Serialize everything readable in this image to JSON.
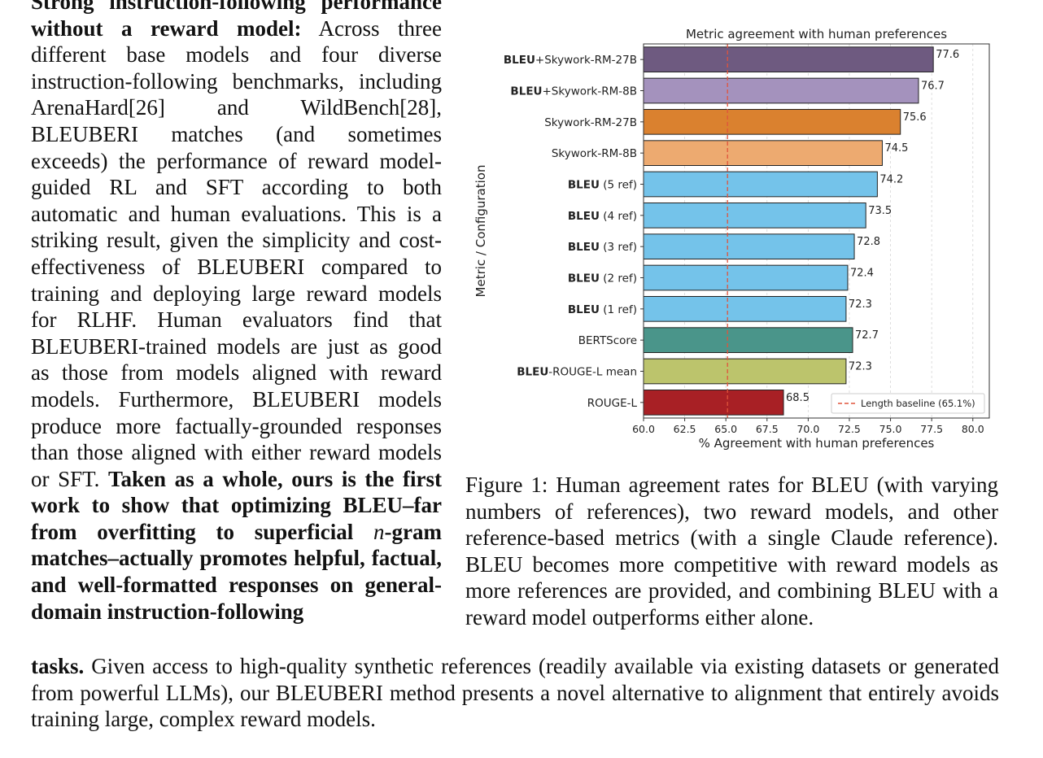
{
  "left_column": {
    "lead_bold": "Strong instruction-following performance without a reward model:",
    "body": "Across three different base models and four diverse instruction-following benchmarks, including ArenaHard[26] and WildBench[28], BLEUBERI matches (and sometimes exceeds) the performance of reward model-guided RL and SFT according to both automatic and human evaluations. This is a striking result, given the simplicity and cost-effectiveness of BLEUBERI compared to training and deploying large reward models for RLHF. Human evaluators find that BLEUBERI-trained models are just as good as those from models aligned with reward models. Furthermore, BLEUBERI models produce more factually-grounded responses than those aligned with either reward models or SFT.",
    "bold_claim_part1": "Taken as a whole, ours is the first work to show that optimizing BLEU–far from overfitting to superficial",
    "bold_claim_math": "n",
    "bold_claim_part2": "-gram matches–actually promotes helpful, factual, and well-formatted responses on general-domain instruction-following"
  },
  "bottom_paragraph": {
    "bold_start": "tasks.",
    "text": "Given access to high-quality synthetic references (readily available via existing datasets or generated from powerful LLMs), our BLEUBERI method presents a novel alternative to alignment that entirely avoids training large, complex reward models."
  },
  "caption": "Figure 1: Human agreement rates for BLEU (with varying numbers of references), two reward models, and other reference-based metrics (with a single Claude reference). BLEU becomes more competitive with reward models as more references are provided, and combining BLEU with a reward model outperforms either alone.",
  "chart_data": {
    "type": "bar",
    "orientation": "horizontal",
    "title": "Metric agreement with human preferences",
    "xlabel": "% Agreement with human preferences",
    "ylabel": "Metric / Configuration",
    "xlim": [
      60.0,
      81.0
    ],
    "xticks": [
      "60.0",
      "62.5",
      "65.0",
      "67.5",
      "70.0",
      "72.5",
      "75.0",
      "77.5",
      "80.0"
    ],
    "grid": "vertical dashed",
    "bars": [
      {
        "bold": "BLEU",
        "rest": "+Skywork-RM-27B",
        "value": 77.6,
        "label": "77.6",
        "color": "#6e5a80"
      },
      {
        "bold": "BLEU",
        "rest": "+Skywork-RM-8B",
        "value": 76.7,
        "label": "76.7",
        "color": "#a492bd"
      },
      {
        "bold": "",
        "rest": "Skywork-RM-27B",
        "value": 75.6,
        "label": "75.6",
        "color": "#da812f"
      },
      {
        "bold": "",
        "rest": "Skywork-RM-8B",
        "value": 74.5,
        "label": "74.5",
        "color": "#edaa70"
      },
      {
        "bold": "BLEU",
        "rest": " (5 ref)",
        "value": 74.2,
        "label": "74.2",
        "color": "#74c3ea"
      },
      {
        "bold": "BLEU",
        "rest": " (4 ref)",
        "value": 73.5,
        "label": "73.5",
        "color": "#74c3ea"
      },
      {
        "bold": "BLEU",
        "rest": " (3 ref)",
        "value": 72.8,
        "label": "72.8",
        "color": "#74c3ea"
      },
      {
        "bold": "BLEU",
        "rest": " (2 ref)",
        "value": 72.4,
        "label": "72.4",
        "color": "#74c3ea"
      },
      {
        "bold": "BLEU",
        "rest": " (1 ref)",
        "value": 72.3,
        "label": "72.3",
        "color": "#74c3ea"
      },
      {
        "bold": "",
        "rest": "BERTScore",
        "value": 72.7,
        "label": "72.7",
        "color": "#4a958a"
      },
      {
        "bold": "BLEU",
        "rest": "-ROUGE-L mean",
        "value": 72.3,
        "label": "72.3",
        "color": "#bcc46c"
      },
      {
        "bold": "",
        "rest": "ROUGE-L",
        "value": 68.5,
        "label": "68.5",
        "color": "#a82025"
      }
    ],
    "baseline": {
      "value": 65.1,
      "label": "Length baseline (65.1%)",
      "color": "#e0533c"
    },
    "legend_position": "bottom-right"
  }
}
